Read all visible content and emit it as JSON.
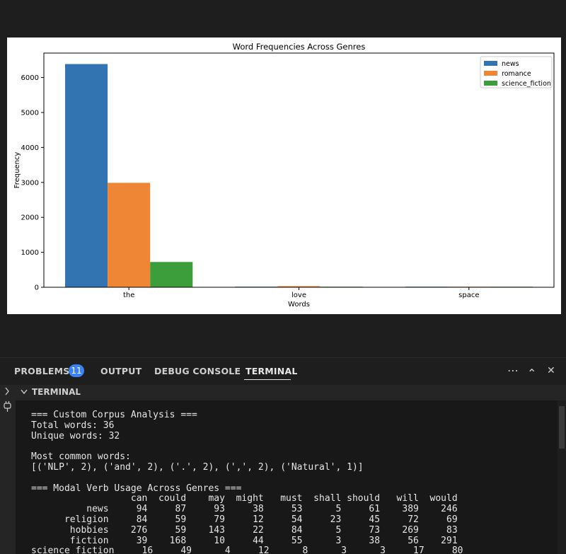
{
  "chart_data": {
    "type": "bar",
    "title": "Word Frequencies Across Genres",
    "xlabel": "Words",
    "ylabel": "Frequency",
    "categories": [
      "the",
      "love",
      "space"
    ],
    "series": [
      {
        "name": "news",
        "values": [
          6386,
          11,
          4
        ],
        "color": "#3274b2"
      },
      {
        "name": "romance",
        "values": [
          2988,
          32,
          3
        ],
        "color": "#ef8636"
      },
      {
        "name": "science_fiction",
        "values": [
          723,
          3,
          1
        ],
        "color": "#3b9e3a"
      }
    ],
    "ylim": [
      0,
      6700
    ],
    "yticks": [
      0,
      1000,
      2000,
      3000,
      4000,
      5000,
      6000
    ],
    "legend_position": "top-right",
    "grid": false
  },
  "panel": {
    "tabs": {
      "problems": "PROBLEMS",
      "problems_badge": "11",
      "output": "OUTPUT",
      "debug_console": "DEBUG CONSOLE",
      "terminal": "TERMINAL"
    },
    "actions": {
      "more": "⋯",
      "maximize": "⌃",
      "close": "✕"
    },
    "section_title": "TERMINAL",
    "terminal_lines": [
      "=== Custom Corpus Analysis ===",
      "Total words: 36",
      "Unique words: 32",
      "",
      "Most common words:",
      "[('NLP', 2), ('and', 2), ('.', 2), (',', 2), ('Natural', 1)]",
      "",
      "=== Modal Verb Usage Across Genres ===",
      "                  can  could    may  might   must  shall should   will  would",
      "          news     94     87     93     38     53      5     61    389    246",
      "      religion     84     59     79     12     54     23     45     72     69",
      "       hobbies    276     59    143     22     84      5     73    269     83",
      "       fiction     39    168     10     44     55      3     38     56    291",
      "science_fiction     16     49      4     12      8      3      3     17     80"
    ]
  },
  "colors": {
    "accent": "#3b82f6",
    "background": "#1e1e1e"
  }
}
